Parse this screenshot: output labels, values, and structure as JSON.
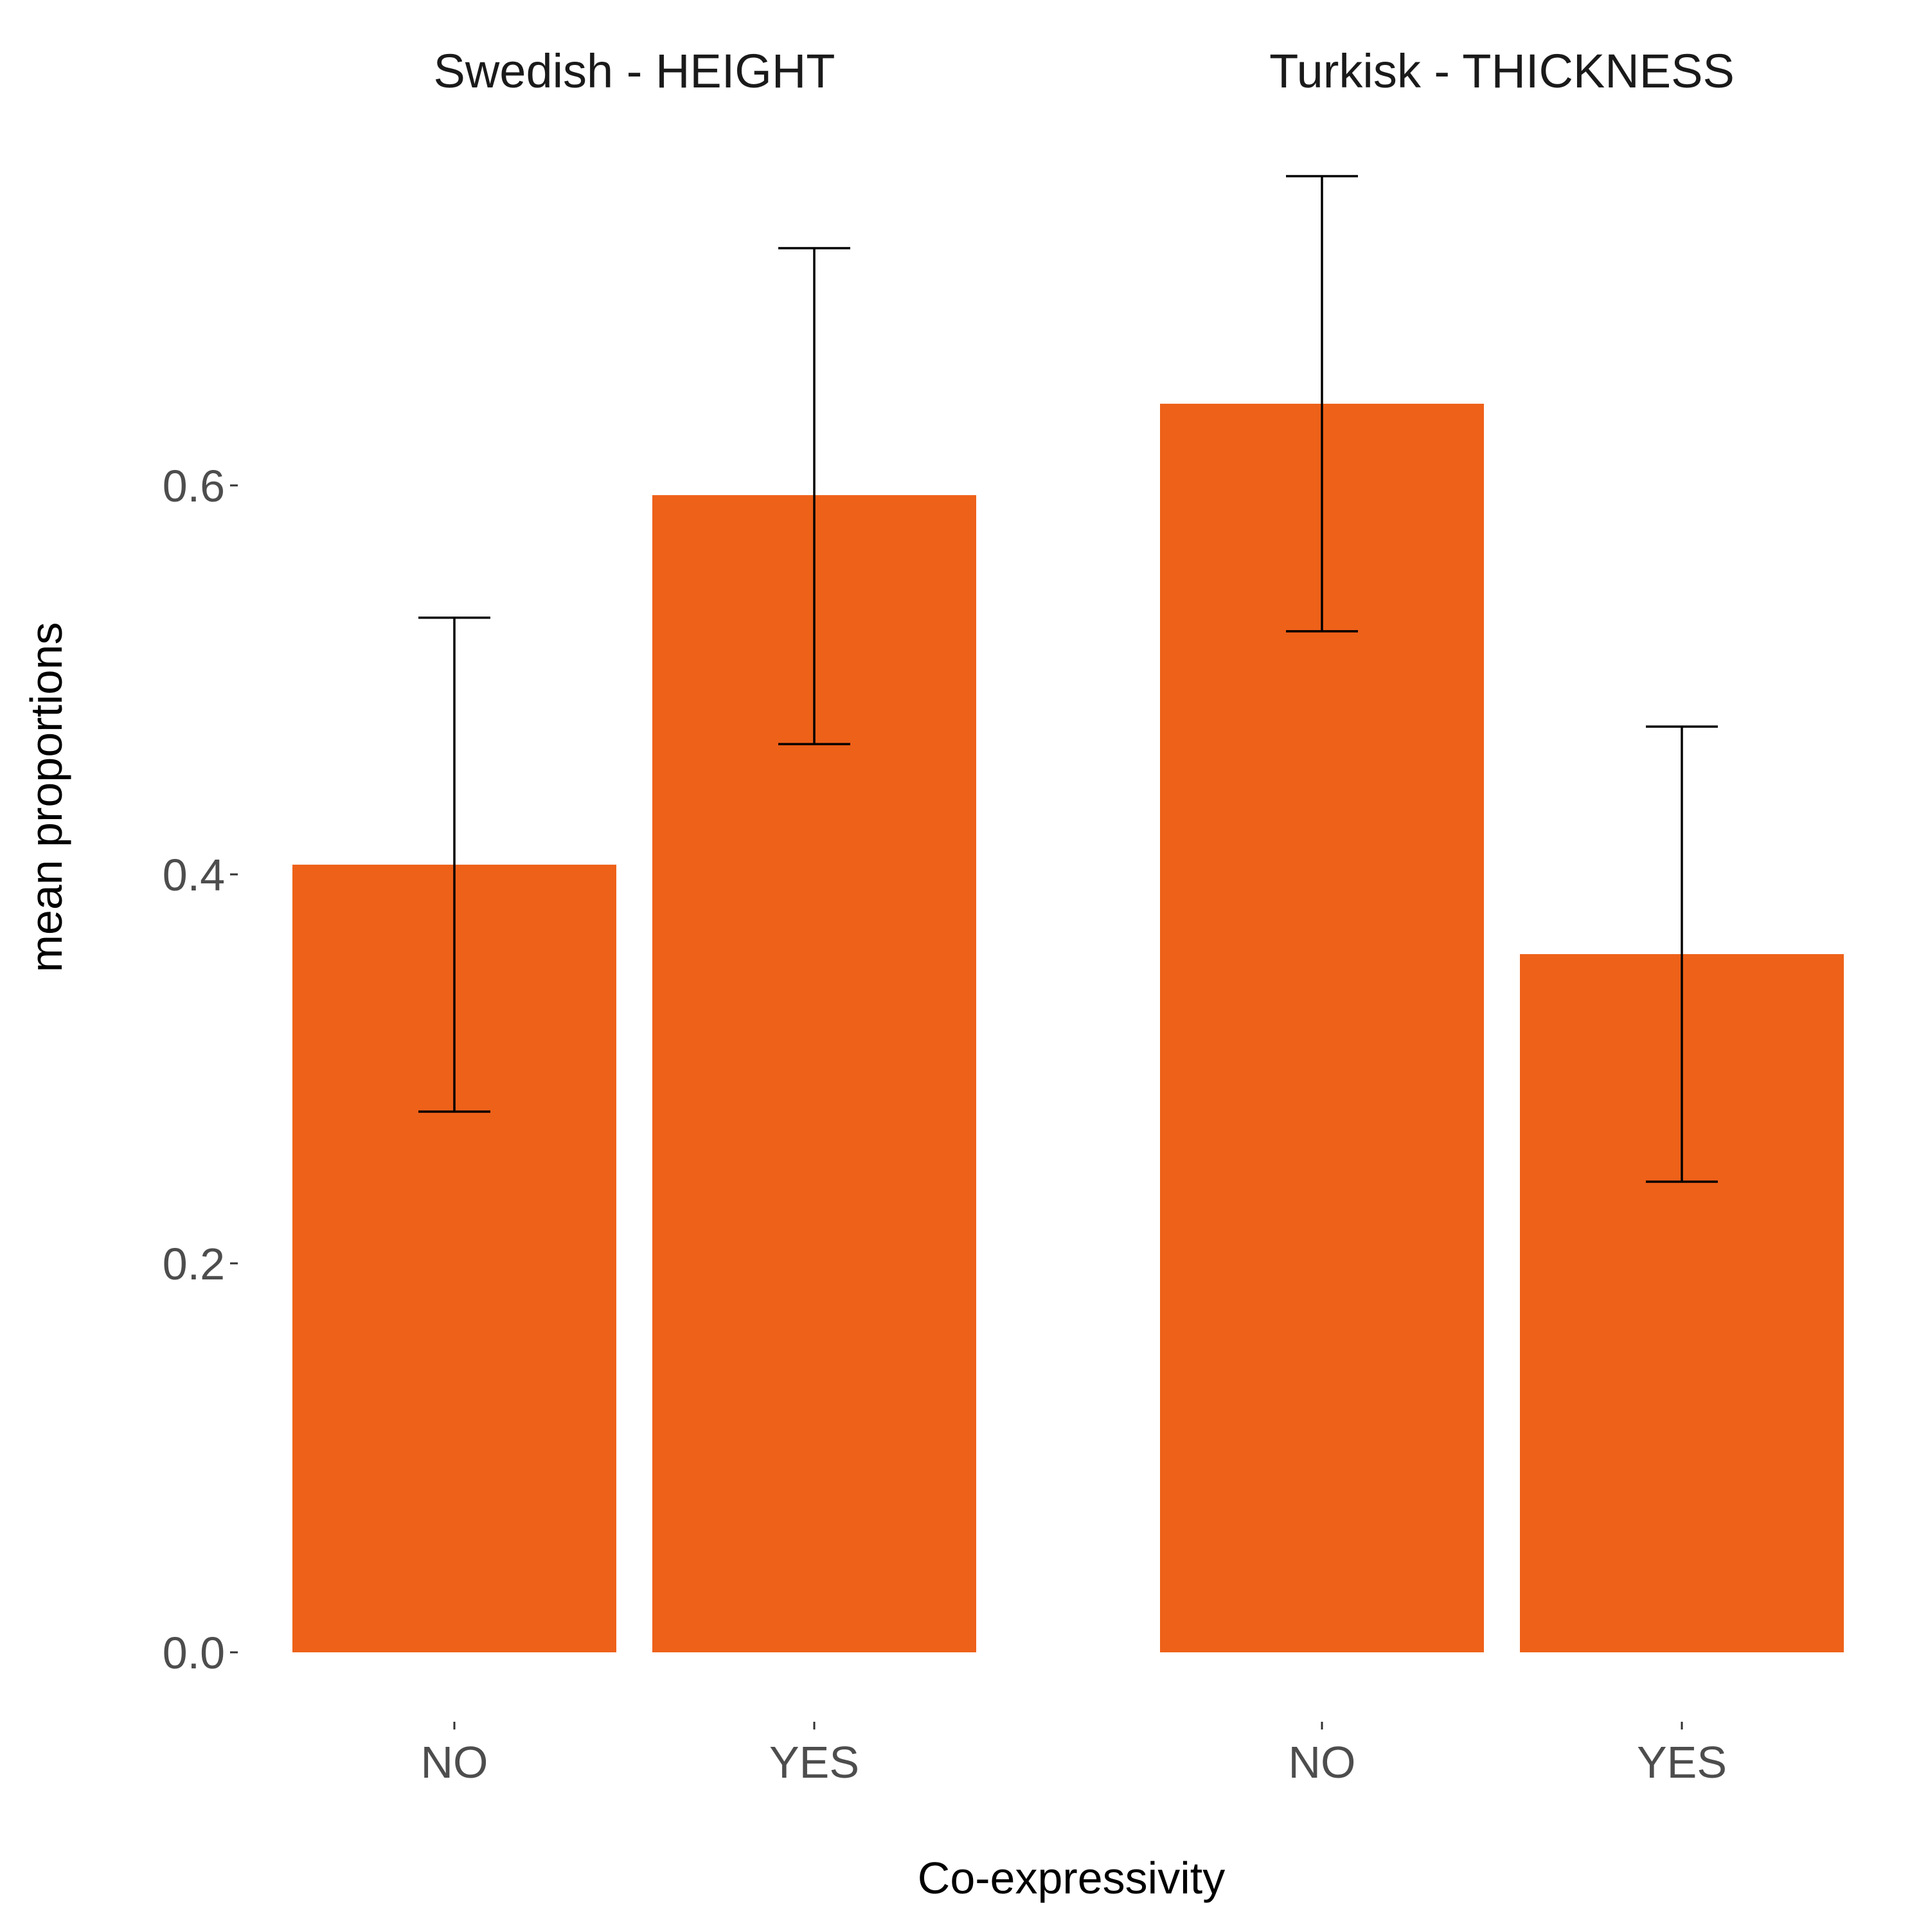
{
  "chart_data": {
    "type": "bar",
    "xlabel": "Co-expressivity",
    "ylabel": "mean proportions",
    "ylim": [
      0,
      0.76
    ],
    "yticks": [
      0.0,
      0.2,
      0.4,
      0.6
    ],
    "ytick_labels": [
      "0.0",
      "0.2",
      "0.4",
      "0.6"
    ],
    "grid": false,
    "bar_color": "#ee6119",
    "error_color": "#000000",
    "panels": [
      {
        "title": "Swedish - HEIGHT",
        "categories": [
          "NO",
          "YES"
        ],
        "values": [
          0.405,
          0.595
        ],
        "error_low": [
          0.278,
          0.467
        ],
        "error_high": [
          0.532,
          0.722
        ]
      },
      {
        "title": "Turkisk - THICKNESS",
        "categories": [
          "NO",
          "YES"
        ],
        "values": [
          0.642,
          0.359
        ],
        "error_low": [
          0.525,
          0.242
        ],
        "error_high": [
          0.759,
          0.476
        ]
      }
    ]
  }
}
